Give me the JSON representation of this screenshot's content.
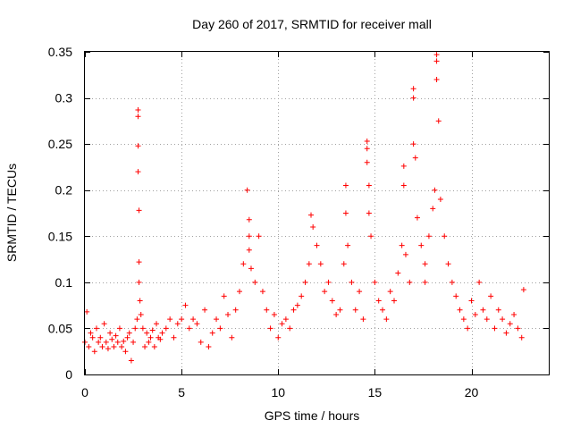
{
  "chart_data": {
    "type": "scatter",
    "title": "Day 260 of 2017, SRMTID for receiver mall",
    "xlabel": "GPS time / hours",
    "ylabel": "SRMTID / TECUs",
    "xlim": [
      0,
      24
    ],
    "ylim": [
      0,
      0.35
    ],
    "xticks": [
      0,
      5,
      10,
      15,
      20
    ],
    "xtick_labels": [
      "0",
      "5",
      "10",
      "15",
      "20"
    ],
    "yticks": [
      0,
      0.05,
      0.1,
      0.15,
      0.2,
      0.25,
      0.3,
      0.35
    ],
    "ytick_labels": [
      "0",
      "0.05",
      "0.1",
      "0.15",
      "0.2",
      "0.25",
      "0.3",
      "0.35"
    ],
    "grid": true,
    "marker": "+",
    "series": [
      {
        "name": "SRMTID",
        "color": "#ff0000",
        "x": [
          0.0,
          0.1,
          0.2,
          0.3,
          0.4,
          0.5,
          0.6,
          0.7,
          0.8,
          0.9,
          1.0,
          1.1,
          1.2,
          1.3,
          1.4,
          1.5,
          1.6,
          1.7,
          1.8,
          1.9,
          2.0,
          2.1,
          2.2,
          2.3,
          2.4,
          2.5,
          2.6,
          2.7,
          2.75,
          2.75,
          2.75,
          2.75,
          2.8,
          2.8,
          2.8,
          2.85,
          2.9,
          3.0,
          3.1,
          3.2,
          3.3,
          3.4,
          3.5,
          3.6,
          3.7,
          3.8,
          3.9,
          4.0,
          4.2,
          4.4,
          4.6,
          4.8,
          5.0,
          5.2,
          5.4,
          5.6,
          5.8,
          6.0,
          6.2,
          6.4,
          6.6,
          6.8,
          7.0,
          7.2,
          7.4,
          7.6,
          7.8,
          8.0,
          8.2,
          8.4,
          8.5,
          8.5,
          8.5,
          8.6,
          8.8,
          9.0,
          9.2,
          9.4,
          9.6,
          9.8,
          10.0,
          10.2,
          10.4,
          10.6,
          10.8,
          11.0,
          11.2,
          11.4,
          11.6,
          11.7,
          11.8,
          12.0,
          12.2,
          12.4,
          12.6,
          12.8,
          13.0,
          13.2,
          13.4,
          13.5,
          13.5,
          13.6,
          13.8,
          14.0,
          14.2,
          14.4,
          14.6,
          14.6,
          14.6,
          14.7,
          14.7,
          14.8,
          15.0,
          15.2,
          15.4,
          15.6,
          15.8,
          16.0,
          16.2,
          16.4,
          16.5,
          16.5,
          16.6,
          16.8,
          17.0,
          17.0,
          17.0,
          17.1,
          17.2,
          17.4,
          17.6,
          17.6,
          17.8,
          18.0,
          18.1,
          18.2,
          18.2,
          18.2,
          18.3,
          18.4,
          18.6,
          18.8,
          19.0,
          19.2,
          19.4,
          19.6,
          19.8,
          20.0,
          20.2,
          20.4,
          20.6,
          20.8,
          21.0,
          21.2,
          21.4,
          21.6,
          21.8,
          22.0,
          22.2,
          22.4,
          22.6,
          22.7
        ],
        "y": [
          0.035,
          0.068,
          0.03,
          0.045,
          0.04,
          0.025,
          0.05,
          0.035,
          0.04,
          0.03,
          0.055,
          0.035,
          0.028,
          0.045,
          0.038,
          0.03,
          0.042,
          0.035,
          0.05,
          0.03,
          0.036,
          0.025,
          0.04,
          0.045,
          0.015,
          0.035,
          0.05,
          0.06,
          0.287,
          0.28,
          0.248,
          0.22,
          0.178,
          0.122,
          0.1,
          0.08,
          0.065,
          0.05,
          0.03,
          0.045,
          0.035,
          0.04,
          0.048,
          0.03,
          0.055,
          0.04,
          0.038,
          0.045,
          0.05,
          0.06,
          0.04,
          0.055,
          0.06,
          0.075,
          0.05,
          0.06,
          0.055,
          0.035,
          0.07,
          0.03,
          0.045,
          0.06,
          0.05,
          0.085,
          0.065,
          0.04,
          0.07,
          0.09,
          0.12,
          0.2,
          0.168,
          0.15,
          0.135,
          0.115,
          0.1,
          0.15,
          0.09,
          0.07,
          0.05,
          0.065,
          0.04,
          0.055,
          0.06,
          0.05,
          0.07,
          0.075,
          0.085,
          0.1,
          0.12,
          0.173,
          0.16,
          0.14,
          0.12,
          0.09,
          0.1,
          0.08,
          0.065,
          0.07,
          0.12,
          0.205,
          0.175,
          0.14,
          0.1,
          0.07,
          0.09,
          0.06,
          0.253,
          0.245,
          0.23,
          0.205,
          0.175,
          0.15,
          0.1,
          0.08,
          0.07,
          0.06,
          0.09,
          0.08,
          0.11,
          0.14,
          0.226,
          0.205,
          0.13,
          0.1,
          0.31,
          0.3,
          0.25,
          0.235,
          0.17,
          0.14,
          0.12,
          0.1,
          0.15,
          0.18,
          0.2,
          0.347,
          0.34,
          0.32,
          0.275,
          0.19,
          0.15,
          0.12,
          0.1,
          0.085,
          0.07,
          0.06,
          0.05,
          0.08,
          0.065,
          0.1,
          0.07,
          0.06,
          0.085,
          0.05,
          0.07,
          0.06,
          0.045,
          0.055,
          0.065,
          0.05,
          0.04,
          0.092
        ]
      }
    ]
  }
}
